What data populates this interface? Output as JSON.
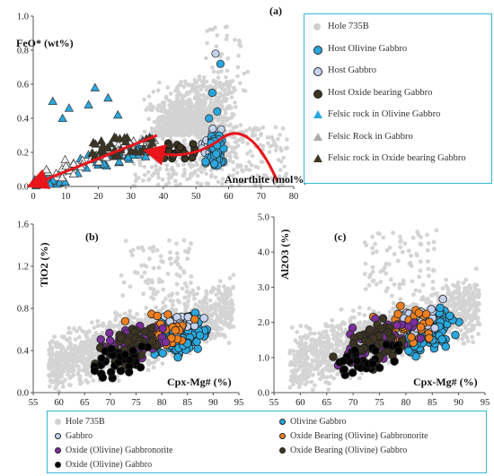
{
  "chart_data": [
    {
      "panel": "(a)",
      "type": "scatter",
      "xlabel": "Anorthite (mol%)",
      "ylabel": "FeO* (wt%)",
      "xlim": [
        0,
        80
      ],
      "ylim": [
        0,
        1.0
      ],
      "x_ticks": [
        0,
        10,
        20,
        30,
        40,
        50,
        60,
        70,
        80
      ],
      "y_ticks": [
        0.0,
        0.2,
        0.4,
        0.6,
        0.8,
        1.0
      ],
      "legend": [
        {
          "name": "Hole 735B",
          "marker": "circle",
          "color": "#cfcfcf"
        },
        {
          "name": "Host Olivine Gabbro",
          "marker": "circle",
          "color": "#29a8df"
        },
        {
          "name": "Host Gabbro",
          "marker": "circle",
          "color": "#c5d3ef"
        },
        {
          "name": "Host Oxide bearing Gabbro",
          "marker": "circle",
          "color": "#3d3523"
        },
        {
          "name": "Felsic rock in Olivine Gabbro",
          "marker": "triangle",
          "color": "#29a8df"
        },
        {
          "name": "Felsic Rock in Gabbro",
          "marker": "triangle",
          "color": "#f4f4f4"
        },
        {
          "name": "Felsic rock in Oxide bearing Gabbro",
          "marker": "triangle",
          "color": "#3d3523"
        }
      ],
      "trend_arrows": [
        {
          "from": [
            38,
            0.3
          ],
          "to": [
            2,
            0.02
          ]
        },
        {
          "from": [
            75,
            0.02
          ],
          "to": [
            38,
            0.2
          ]
        }
      ]
    },
    {
      "panel": "(b)",
      "type": "scatter",
      "xlabel": "Cpx-Mg# (%)",
      "ylabel": "TiO2 (%)",
      "xlim": [
        55,
        95
      ],
      "ylim": [
        0,
        1.6
      ],
      "x_ticks": [
        55,
        60,
        65,
        70,
        75,
        80,
        85,
        90,
        95
      ],
      "y_ticks": [
        0.0,
        0.4,
        0.8,
        1.2,
        1.6
      ]
    },
    {
      "panel": "(c)",
      "type": "scatter",
      "xlabel": "Cpx-Mg# (%)",
      "ylabel": "Al2O3 (%)",
      "xlim": [
        55,
        95
      ],
      "ylim": [
        0,
        5.0
      ],
      "x_ticks": [
        55,
        60,
        65,
        70,
        75,
        80,
        85,
        90,
        95
      ],
      "y_ticks": [
        0.0,
        1.0,
        2.0,
        3.0,
        4.0,
        5.0
      ]
    }
  ],
  "bottom_legend": [
    {
      "name": "Hole 735B",
      "color": "#cfcfcf"
    },
    {
      "name": "Olivine Gabbro",
      "color": "#29a8df"
    },
    {
      "name": "Gabbro",
      "color": "#c5d3ef"
    },
    {
      "name": "Oxide Bearing (Olivine) Gabbronorite",
      "color": "#f07f1f"
    },
    {
      "name": "Oxide (Olivine) Gabbronorite",
      "color": "#7a2f9c"
    },
    {
      "name": "Oxide Bearing (Olivine) Gabbro",
      "color": "#3d3523"
    },
    {
      "name": "Oxide (Olivine) Gabbro",
      "color": "#000000"
    }
  ],
  "arrow_color": "#e8151b"
}
